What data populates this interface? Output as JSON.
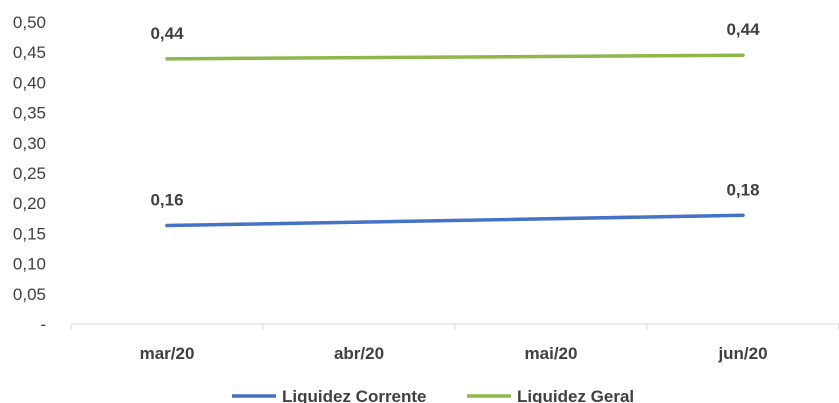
{
  "chart_data": {
    "type": "line",
    "categories": [
      "mar/20",
      "abr/20",
      "mai/20",
      "jun/20"
    ],
    "series": [
      {
        "name": "Liquidez Corrente",
        "x": [
          "mar/20",
          "jun/20"
        ],
        "values": [
          0.163,
          0.18
        ],
        "labels": [
          "0,16",
          "0,18"
        ],
        "color": "#4472C4"
      },
      {
        "name": "Liquidez Geral",
        "x": [
          "mar/20",
          "jun/20"
        ],
        "values": [
          0.439,
          0.445
        ],
        "labels": [
          "0,44",
          "0,44"
        ],
        "color": "#8DB849"
      }
    ],
    "ylim": [
      0,
      0.5
    ],
    "yticks": [
      0,
      0.05,
      0.1,
      0.15,
      0.2,
      0.25,
      0.3,
      0.35,
      0.4,
      0.45,
      0.5
    ],
    "ytick_labels": [
      "-",
      "0,05",
      "0,10",
      "0,15",
      "0,20",
      "0,25",
      "0,30",
      "0,35",
      "0,40",
      "0,45",
      "0,50"
    ],
    "grid": false,
    "legend_position": "bottom",
    "title": "",
    "xlabel": "",
    "ylabel": ""
  }
}
